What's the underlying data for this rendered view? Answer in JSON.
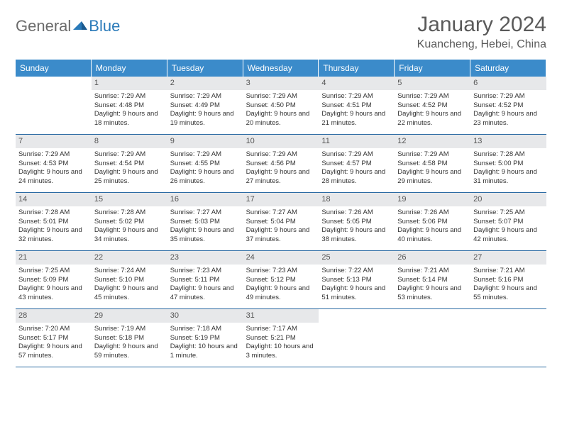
{
  "logo": {
    "general": "General",
    "blue": "Blue"
  },
  "title": "January 2024",
  "location": "Kuancheng, Hebei, China",
  "colors": {
    "header_bg": "#3b8bca",
    "header_text": "#ffffff",
    "daynum_bg": "#e7e8ea",
    "cell_border": "#2a6aa3",
    "text": "#333333",
    "title_color": "#5a5a5a",
    "logo_gray": "#6b6b6b",
    "logo_blue": "#2a7ab9"
  },
  "weekdays": [
    "Sunday",
    "Monday",
    "Tuesday",
    "Wednesday",
    "Thursday",
    "Friday",
    "Saturday"
  ],
  "start_offset": 1,
  "days": [
    {
      "n": "1",
      "sunrise": "7:29 AM",
      "sunset": "4:48 PM",
      "daylight": "9 hours and 18 minutes."
    },
    {
      "n": "2",
      "sunrise": "7:29 AM",
      "sunset": "4:49 PM",
      "daylight": "9 hours and 19 minutes."
    },
    {
      "n": "3",
      "sunrise": "7:29 AM",
      "sunset": "4:50 PM",
      "daylight": "9 hours and 20 minutes."
    },
    {
      "n": "4",
      "sunrise": "7:29 AM",
      "sunset": "4:51 PM",
      "daylight": "9 hours and 21 minutes."
    },
    {
      "n": "5",
      "sunrise": "7:29 AM",
      "sunset": "4:52 PM",
      "daylight": "9 hours and 22 minutes."
    },
    {
      "n": "6",
      "sunrise": "7:29 AM",
      "sunset": "4:52 PM",
      "daylight": "9 hours and 23 minutes."
    },
    {
      "n": "7",
      "sunrise": "7:29 AM",
      "sunset": "4:53 PM",
      "daylight": "9 hours and 24 minutes."
    },
    {
      "n": "8",
      "sunrise": "7:29 AM",
      "sunset": "4:54 PM",
      "daylight": "9 hours and 25 minutes."
    },
    {
      "n": "9",
      "sunrise": "7:29 AM",
      "sunset": "4:55 PM",
      "daylight": "9 hours and 26 minutes."
    },
    {
      "n": "10",
      "sunrise": "7:29 AM",
      "sunset": "4:56 PM",
      "daylight": "9 hours and 27 minutes."
    },
    {
      "n": "11",
      "sunrise": "7:29 AM",
      "sunset": "4:57 PM",
      "daylight": "9 hours and 28 minutes."
    },
    {
      "n": "12",
      "sunrise": "7:29 AM",
      "sunset": "4:58 PM",
      "daylight": "9 hours and 29 minutes."
    },
    {
      "n": "13",
      "sunrise": "7:28 AM",
      "sunset": "5:00 PM",
      "daylight": "9 hours and 31 minutes."
    },
    {
      "n": "14",
      "sunrise": "7:28 AM",
      "sunset": "5:01 PM",
      "daylight": "9 hours and 32 minutes."
    },
    {
      "n": "15",
      "sunrise": "7:28 AM",
      "sunset": "5:02 PM",
      "daylight": "9 hours and 34 minutes."
    },
    {
      "n": "16",
      "sunrise": "7:27 AM",
      "sunset": "5:03 PM",
      "daylight": "9 hours and 35 minutes."
    },
    {
      "n": "17",
      "sunrise": "7:27 AM",
      "sunset": "5:04 PM",
      "daylight": "9 hours and 37 minutes."
    },
    {
      "n": "18",
      "sunrise": "7:26 AM",
      "sunset": "5:05 PM",
      "daylight": "9 hours and 38 minutes."
    },
    {
      "n": "19",
      "sunrise": "7:26 AM",
      "sunset": "5:06 PM",
      "daylight": "9 hours and 40 minutes."
    },
    {
      "n": "20",
      "sunrise": "7:25 AM",
      "sunset": "5:07 PM",
      "daylight": "9 hours and 42 minutes."
    },
    {
      "n": "21",
      "sunrise": "7:25 AM",
      "sunset": "5:09 PM",
      "daylight": "9 hours and 43 minutes."
    },
    {
      "n": "22",
      "sunrise": "7:24 AM",
      "sunset": "5:10 PM",
      "daylight": "9 hours and 45 minutes."
    },
    {
      "n": "23",
      "sunrise": "7:23 AM",
      "sunset": "5:11 PM",
      "daylight": "9 hours and 47 minutes."
    },
    {
      "n": "24",
      "sunrise": "7:23 AM",
      "sunset": "5:12 PM",
      "daylight": "9 hours and 49 minutes."
    },
    {
      "n": "25",
      "sunrise": "7:22 AM",
      "sunset": "5:13 PM",
      "daylight": "9 hours and 51 minutes."
    },
    {
      "n": "26",
      "sunrise": "7:21 AM",
      "sunset": "5:14 PM",
      "daylight": "9 hours and 53 minutes."
    },
    {
      "n": "27",
      "sunrise": "7:21 AM",
      "sunset": "5:16 PM",
      "daylight": "9 hours and 55 minutes."
    },
    {
      "n": "28",
      "sunrise": "7:20 AM",
      "sunset": "5:17 PM",
      "daylight": "9 hours and 57 minutes."
    },
    {
      "n": "29",
      "sunrise": "7:19 AM",
      "sunset": "5:18 PM",
      "daylight": "9 hours and 59 minutes."
    },
    {
      "n": "30",
      "sunrise": "7:18 AM",
      "sunset": "5:19 PM",
      "daylight": "10 hours and 1 minute."
    },
    {
      "n": "31",
      "sunrise": "7:17 AM",
      "sunset": "5:21 PM",
      "daylight": "10 hours and 3 minutes."
    }
  ],
  "labels": {
    "sunrise": "Sunrise:",
    "sunset": "Sunset:",
    "daylight": "Daylight:"
  }
}
